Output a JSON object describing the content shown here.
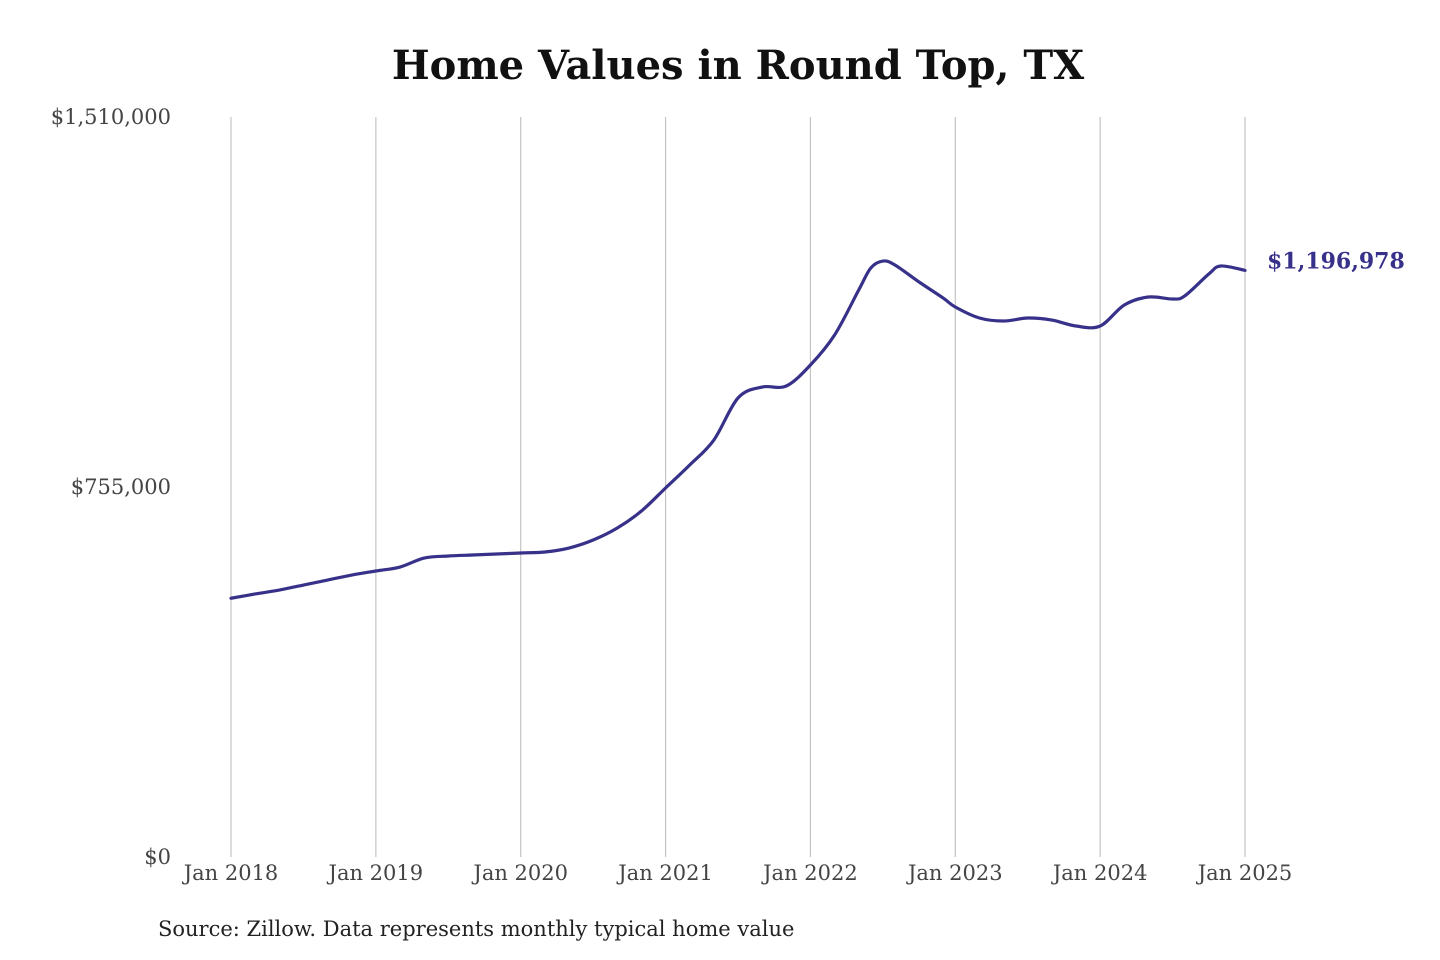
{
  "chart_data": {
    "type": "line",
    "title": "Home Values in Round Top, TX",
    "source": "Source: Zillow. Data represents monthly typical home value",
    "xlabel": "",
    "ylabel": "",
    "ylim": [
      0,
      1510000
    ],
    "y_ticks": [
      {
        "value": 0,
        "label": "$0"
      },
      {
        "value": 755000,
        "label": "$755,000"
      },
      {
        "value": 1510000,
        "label": "$1,510,000"
      }
    ],
    "x_ticks": [
      {
        "month": 0,
        "label": "Jan 2018"
      },
      {
        "month": 12,
        "label": "Jan 2019"
      },
      {
        "month": 24,
        "label": "Jan 2020"
      },
      {
        "month": 36,
        "label": "Jan 2021"
      },
      {
        "month": 48,
        "label": "Jan 2022"
      },
      {
        "month": 60,
        "label": "Jan 2023"
      },
      {
        "month": 72,
        "label": "Jan 2024"
      },
      {
        "month": 84,
        "label": "Jan 2025"
      }
    ],
    "x_unit": "months since Jan 2018",
    "grid": "vertical",
    "line_color": "#38318a",
    "end_label": "$1,196,978",
    "series": [
      {
        "name": "Typical home value",
        "points": [
          [
            0,
            528000
          ],
          [
            2,
            536700
          ],
          [
            4,
            544800
          ],
          [
            6,
            555000
          ],
          [
            8,
            565200
          ],
          [
            10,
            575400
          ],
          [
            12,
            583600
          ],
          [
            14,
            591700
          ],
          [
            16,
            610100
          ],
          [
            18,
            614200
          ],
          [
            20,
            616200
          ],
          [
            22,
            618300
          ],
          [
            24,
            620300
          ],
          [
            26,
            622400
          ],
          [
            28,
            630500
          ],
          [
            30,
            646800
          ],
          [
            32,
            671300
          ],
          [
            34,
            706000
          ],
          [
            36,
            753000
          ],
          [
            38,
            799900
          ],
          [
            40,
            850900
          ],
          [
            42,
            936600
          ],
          [
            44,
            959000
          ],
          [
            46,
            961100
          ],
          [
            48,
            1003900
          ],
          [
            50,
            1065100
          ],
          [
            52,
            1157000
          ],
          [
            53,
            1201900
          ],
          [
            54,
            1216100
          ],
          [
            55,
            1208000
          ],
          [
            57,
            1173300
          ],
          [
            59,
            1140600
          ],
          [
            60,
            1122300
          ],
          [
            62,
            1099800
          ],
          [
            64,
            1093700
          ],
          [
            66,
            1099800
          ],
          [
            68,
            1095700
          ],
          [
            70,
            1083500
          ],
          [
            72,
            1083500
          ],
          [
            74,
            1126400
          ],
          [
            76,
            1142700
          ],
          [
            78,
            1138600
          ],
          [
            79,
            1144800
          ],
          [
            81,
            1189600
          ],
          [
            82,
            1206000
          ],
          [
            84,
            1196978
          ]
        ]
      }
    ]
  }
}
